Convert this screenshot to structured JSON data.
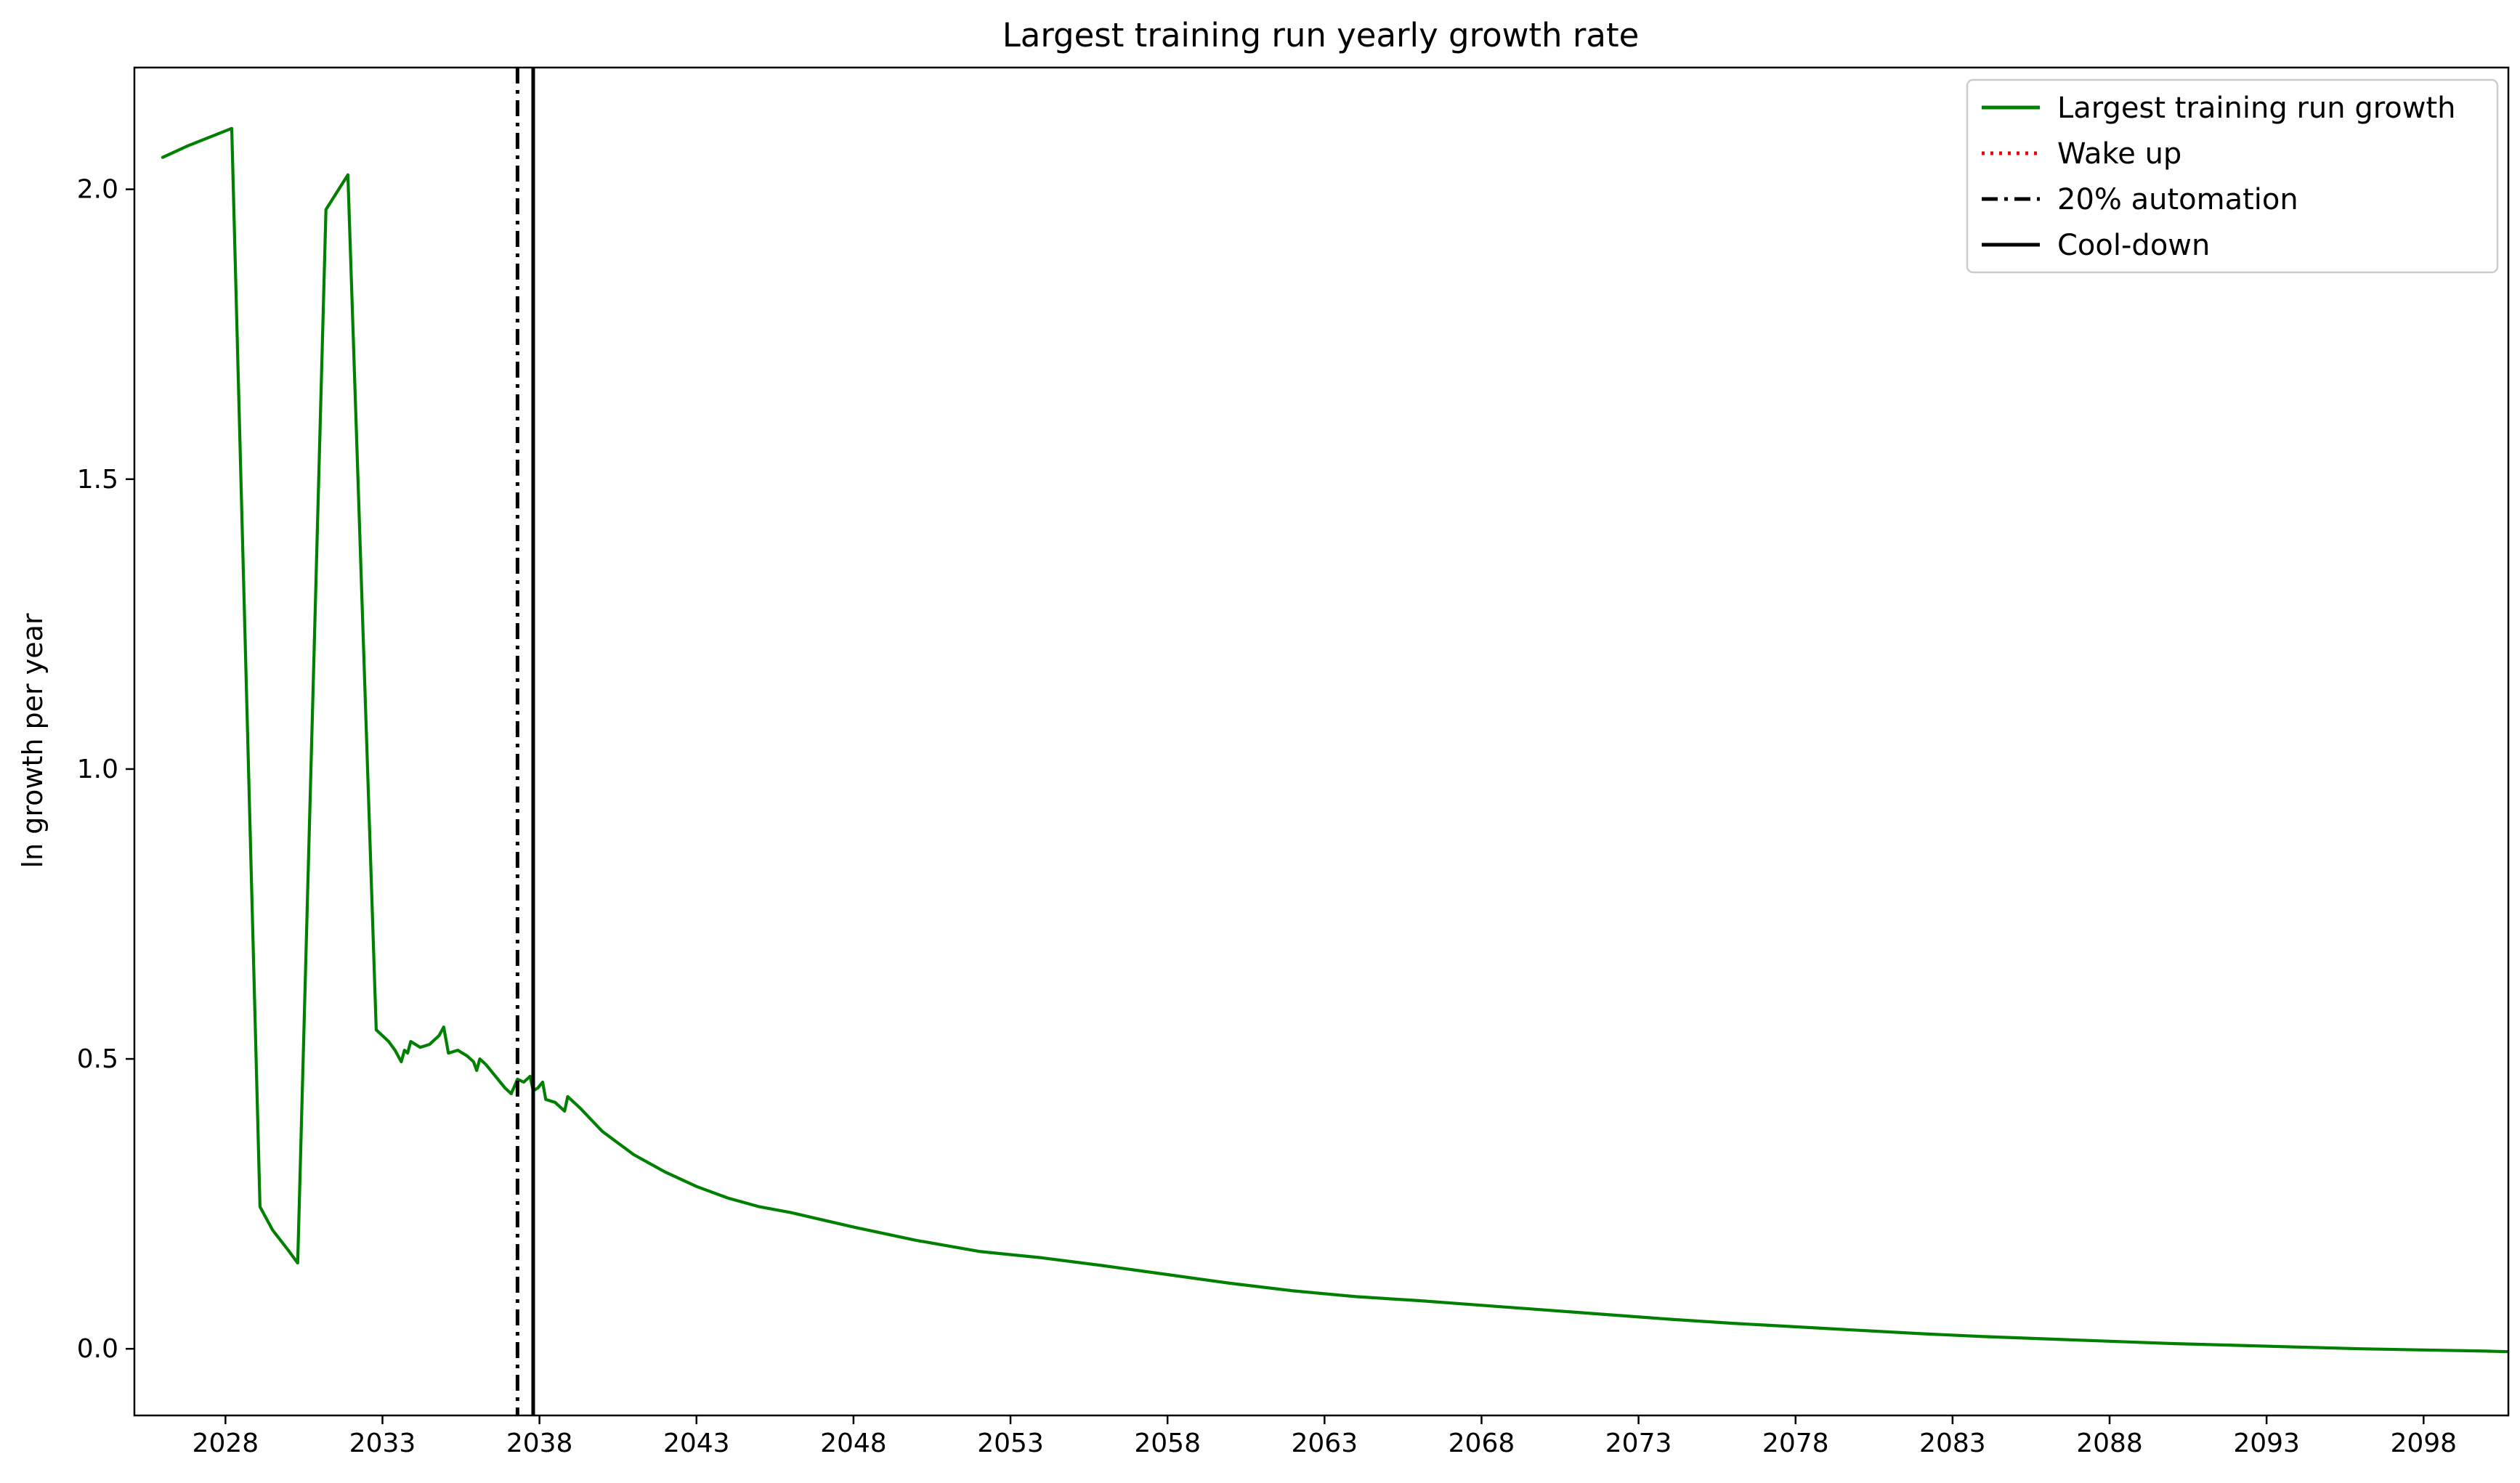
{
  "chart_data": {
    "type": "line",
    "title": "Largest training run yearly growth rate",
    "xlabel": "",
    "ylabel": "ln growth per year",
    "xlim": [
      2025.1,
      2100.7
    ],
    "ylim": [
      -0.115,
      2.21
    ],
    "x_ticks": [
      2028,
      2033,
      2038,
      2043,
      2048,
      2053,
      2058,
      2063,
      2068,
      2073,
      2078,
      2083,
      2088,
      2093,
      2098
    ],
    "x_tick_labels": [
      "2028",
      "2033",
      "2038",
      "2043",
      "2048",
      "2053",
      "2058",
      "2063",
      "2068",
      "2073",
      "2078",
      "2083",
      "2088",
      "2093",
      "2098"
    ],
    "y_ticks": [
      0.0,
      0.5,
      1.0,
      1.5,
      2.0
    ],
    "y_tick_labels": [
      "0.0",
      "0.5",
      "1.0",
      "1.5",
      "2.0"
    ],
    "grid": false,
    "legend_position": "top-right",
    "legend": [
      {
        "label": "Largest training run growth",
        "color": "#008000",
        "style": "solid"
      },
      {
        "label": "Wake up",
        "color": "#ff0000",
        "style": "dotted"
      },
      {
        "label": "20% automation",
        "color": "#000000",
        "style": "dashdot"
      },
      {
        "label": "Cool-down",
        "color": "#000000",
        "style": "solid"
      }
    ],
    "vertical_lines": [
      {
        "name": "20% automation",
        "x": 2037.3,
        "color": "#000000",
        "style": "dashdot"
      },
      {
        "name": "Cool-down",
        "x": 2037.8,
        "color": "#000000",
        "style": "solid"
      }
    ],
    "series": [
      {
        "name": "Largest training run growth",
        "color": "#008000",
        "points": [
          [
            2026.0,
            2.055
          ],
          [
            2026.8,
            2.075
          ],
          [
            2027.5,
            2.09
          ],
          [
            2028.2,
            2.105
          ],
          [
            2029.1,
            0.245
          ],
          [
            2029.5,
            0.205
          ],
          [
            2030.0,
            0.17
          ],
          [
            2030.3,
            0.148
          ],
          [
            2031.2,
            1.965
          ],
          [
            2031.9,
            2.025
          ],
          [
            2032.8,
            0.55
          ],
          [
            2033.2,
            0.53
          ],
          [
            2033.4,
            0.515
          ],
          [
            2033.6,
            0.495
          ],
          [
            2033.7,
            0.515
          ],
          [
            2033.8,
            0.51
          ],
          [
            2033.9,
            0.53
          ],
          [
            2034.2,
            0.52
          ],
          [
            2034.5,
            0.525
          ],
          [
            2034.8,
            0.54
          ],
          [
            2034.95,
            0.555
          ],
          [
            2035.1,
            0.51
          ],
          [
            2035.4,
            0.515
          ],
          [
            2035.7,
            0.505
          ],
          [
            2035.9,
            0.495
          ],
          [
            2036.0,
            0.48
          ],
          [
            2036.1,
            0.5
          ],
          [
            2036.3,
            0.49
          ],
          [
            2036.6,
            0.47
          ],
          [
            2036.9,
            0.45
          ],
          [
            2037.1,
            0.44
          ],
          [
            2037.3,
            0.465
          ],
          [
            2037.5,
            0.46
          ],
          [
            2037.7,
            0.47
          ],
          [
            2037.8,
            0.445
          ],
          [
            2037.95,
            0.45
          ],
          [
            2038.1,
            0.46
          ],
          [
            2038.2,
            0.43
          ],
          [
            2038.5,
            0.425
          ],
          [
            2038.8,
            0.41
          ],
          [
            2038.9,
            0.435
          ],
          [
            2039.3,
            0.415
          ],
          [
            2040.0,
            0.375
          ],
          [
            2041.0,
            0.335
          ],
          [
            2042.0,
            0.305
          ],
          [
            2043.0,
            0.28
          ],
          [
            2044.0,
            0.26
          ],
          [
            2045.0,
            0.245
          ],
          [
            2046.0,
            0.235
          ],
          [
            2048.0,
            0.21
          ],
          [
            2050.0,
            0.187
          ],
          [
            2052.0,
            0.168
          ],
          [
            2054.0,
            0.157
          ],
          [
            2056.0,
            0.143
          ],
          [
            2058.0,
            0.128
          ],
          [
            2060.0,
            0.113
          ],
          [
            2062.0,
            0.1
          ],
          [
            2064.0,
            0.09
          ],
          [
            2066.0,
            0.083
          ],
          [
            2068.0,
            0.075
          ],
          [
            2070.0,
            0.067
          ],
          [
            2072.0,
            0.059
          ],
          [
            2074.0,
            0.051
          ],
          [
            2076.0,
            0.044
          ],
          [
            2078.0,
            0.038
          ],
          [
            2080.0,
            0.032
          ],
          [
            2082.0,
            0.026
          ],
          [
            2084.0,
            0.021
          ],
          [
            2086.0,
            0.017
          ],
          [
            2088.0,
            0.013
          ],
          [
            2090.0,
            0.009
          ],
          [
            2092.0,
            0.006
          ],
          [
            2094.0,
            0.003
          ],
          [
            2096.0,
            0.0
          ],
          [
            2098.0,
            -0.002
          ],
          [
            2100.0,
            -0.004
          ],
          [
            2100.7,
            -0.005
          ]
        ]
      }
    ]
  }
}
